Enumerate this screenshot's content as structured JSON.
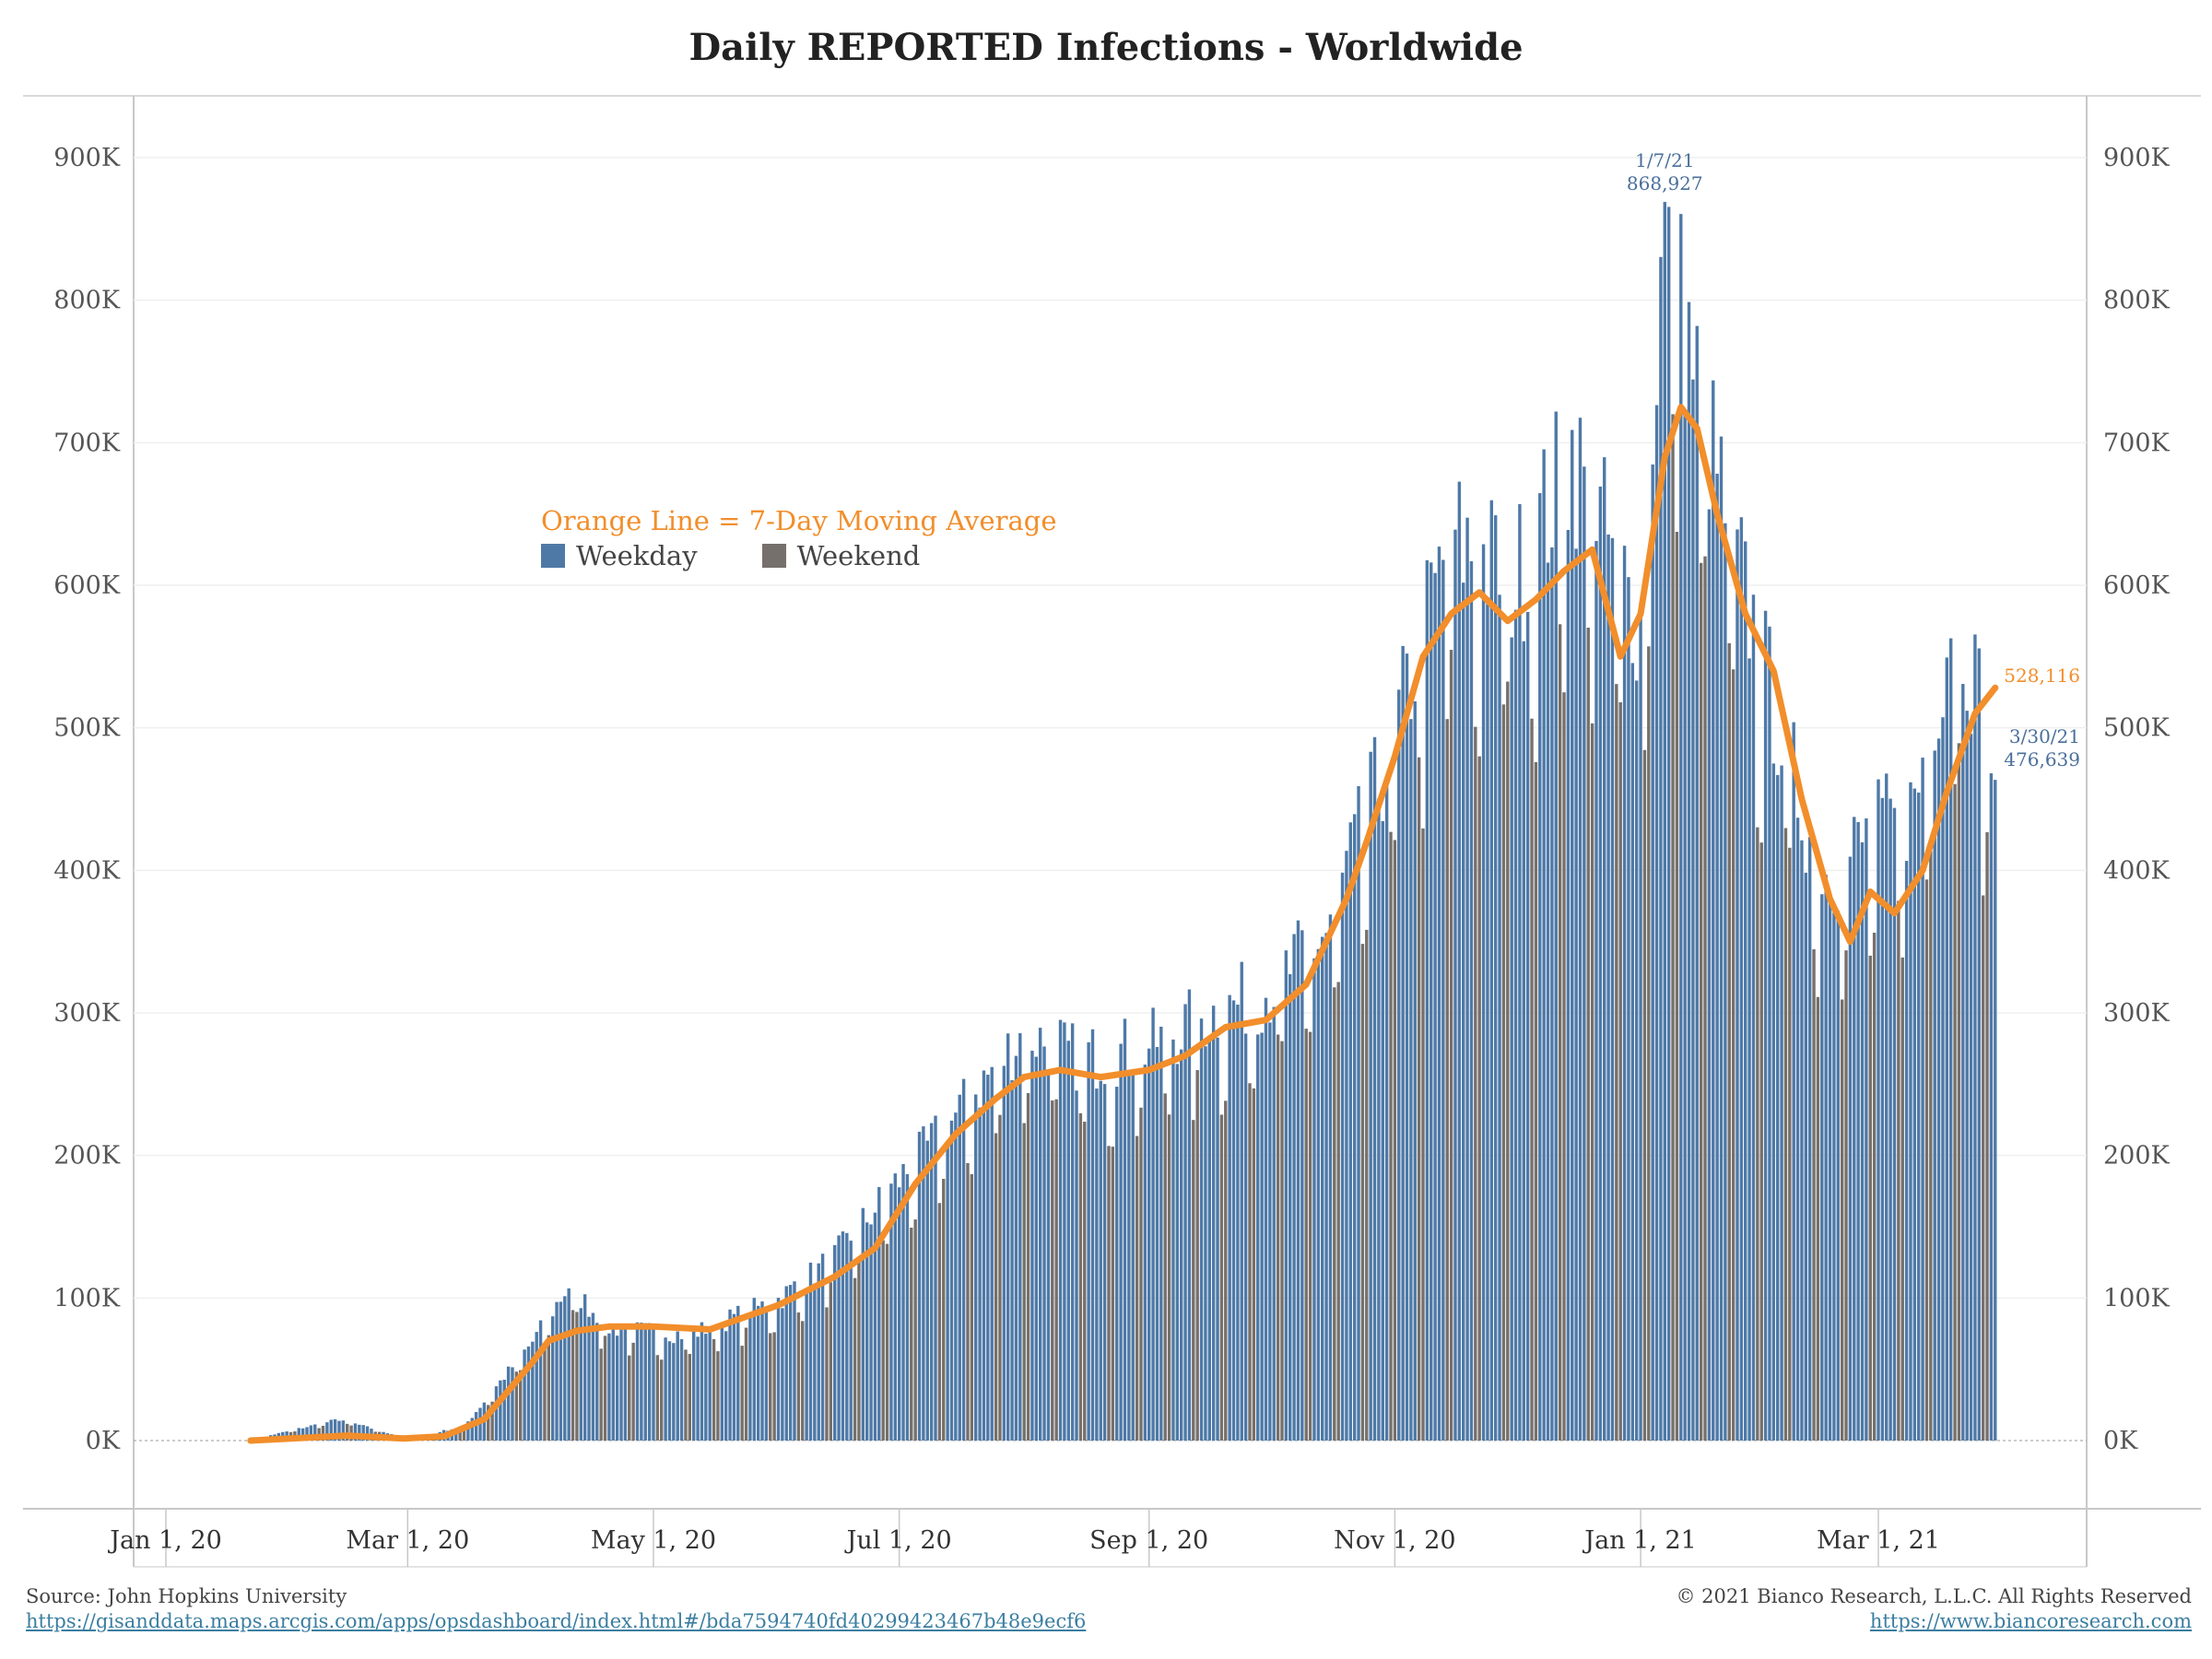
{
  "title": "Daily REPORTED Infections - Worldwide",
  "legend": {
    "note": "Orange Line = 7-Day Moving Average",
    "weekday_label": "Weekday",
    "weekend_label": "Weekend"
  },
  "footer": {
    "source": "Source: John Hopkins University",
    "source_url": "https://gisanddata.maps.arcgis.com/apps/opsdashboard/index.html#/bda7594740fd40299423467b48e9ecf6",
    "copyright": "© 2021 Bianco Research, L.L.C. All Rights Reserved",
    "site_url": "https://www.biancoresearch.com"
  },
  "colors": {
    "weekday": "#4e79a7",
    "weekend": "#76706c",
    "moving_average": "#f28e2b",
    "annotation_blue": "#4a6f9b"
  },
  "chart_data": {
    "type": "bar",
    "title": "Daily REPORTED Infections - Worldwide",
    "x_start": "2020-01-22",
    "x_end": "2021-03-30",
    "ylim": [
      0,
      940000
    ],
    "y_ticks": [
      0,
      100000,
      200000,
      300000,
      400000,
      500000,
      600000,
      700000,
      800000,
      900000
    ],
    "y_tick_labels": [
      "0K",
      "100K",
      "200K",
      "300K",
      "400K",
      "500K",
      "600K",
      "700K",
      "800K",
      "900K"
    ],
    "x_ticks": [
      "2020-01-01",
      "2020-03-01",
      "2020-05-01",
      "2020-07-01",
      "2020-09-01",
      "2020-11-01",
      "2021-01-01",
      "2021-03-01"
    ],
    "x_tick_labels": [
      "Jan 1, 20",
      "Mar 1, 20",
      "May 1, 20",
      "Jul 1, 20",
      "Sep 1, 20",
      "Nov 1, 20",
      "Jan 1, 21",
      "Mar 1, 21"
    ],
    "grid": true,
    "dual_y_axis": true,
    "legend_placement": "upper-left",
    "series": [
      {
        "name": "Weekday",
        "color_role": "weekday"
      },
      {
        "name": "Weekend",
        "color_role": "weekend"
      },
      {
        "name": "7-Day Moving Average",
        "color_role": "moving_average"
      }
    ],
    "moving_average": [
      [
        "2020-01-22",
        0
      ],
      [
        "2020-02-05",
        2000
      ],
      [
        "2020-02-15",
        3500
      ],
      [
        "2020-02-29",
        1500
      ],
      [
        "2020-03-10",
        3000
      ],
      [
        "2020-03-20",
        15000
      ],
      [
        "2020-04-01",
        55000
      ],
      [
        "2020-04-05",
        70000
      ],
      [
        "2020-04-12",
        77000
      ],
      [
        "2020-04-20",
        80000
      ],
      [
        "2020-05-01",
        80000
      ],
      [
        "2020-05-15",
        78000
      ],
      [
        "2020-06-01",
        95000
      ],
      [
        "2020-06-15",
        115000
      ],
      [
        "2020-06-25",
        135000
      ],
      [
        "2020-07-05",
        180000
      ],
      [
        "2020-07-15",
        215000
      ],
      [
        "2020-07-25",
        240000
      ],
      [
        "2020-08-01",
        255000
      ],
      [
        "2020-08-10",
        260000
      ],
      [
        "2020-08-20",
        255000
      ],
      [
        "2020-09-01",
        260000
      ],
      [
        "2020-09-10",
        270000
      ],
      [
        "2020-09-20",
        290000
      ],
      [
        "2020-09-30",
        295000
      ],
      [
        "2020-10-10",
        320000
      ],
      [
        "2020-10-20",
        380000
      ],
      [
        "2020-10-25",
        420000
      ],
      [
        "2020-11-01",
        480000
      ],
      [
        "2020-11-08",
        550000
      ],
      [
        "2020-11-15",
        580000
      ],
      [
        "2020-11-22",
        595000
      ],
      [
        "2020-11-29",
        575000
      ],
      [
        "2020-12-06",
        590000
      ],
      [
        "2020-12-13",
        610000
      ],
      [
        "2020-12-20",
        625000
      ],
      [
        "2020-12-27",
        550000
      ],
      [
        "2021-01-01",
        580000
      ],
      [
        "2021-01-07",
        690000
      ],
      [
        "2021-01-11",
        725000
      ],
      [
        "2021-01-15",
        710000
      ],
      [
        "2021-01-20",
        650000
      ],
      [
        "2021-01-27",
        580000
      ],
      [
        "2021-02-03",
        540000
      ],
      [
        "2021-02-10",
        450000
      ],
      [
        "2021-02-17",
        380000
      ],
      [
        "2021-02-22",
        350000
      ],
      [
        "2021-02-27",
        385000
      ],
      [
        "2021-03-05",
        370000
      ],
      [
        "2021-03-12",
        400000
      ],
      [
        "2021-03-18",
        455000
      ],
      [
        "2021-03-25",
        510000
      ],
      [
        "2021-03-30",
        528116
      ]
    ],
    "daily_anchor_values": [
      [
        "2020-01-22",
        500
      ],
      [
        "2020-02-13",
        15000
      ],
      [
        "2020-03-01",
        1500
      ],
      [
        "2020-03-15",
        10000
      ],
      [
        "2020-04-01",
        70000
      ],
      [
        "2020-04-10",
        110000
      ],
      [
        "2020-04-20",
        80000
      ],
      [
        "2020-05-10",
        75000
      ],
      [
        "2020-06-01",
        100000
      ],
      [
        "2020-06-15",
        130000
      ],
      [
        "2020-07-01",
        185000
      ],
      [
        "2020-07-15",
        230000
      ],
      [
        "2020-08-01",
        290000
      ],
      [
        "2020-08-15",
        270000
      ],
      [
        "2020-09-01",
        280000
      ],
      [
        "2020-09-15",
        300000
      ],
      [
        "2020-10-01",
        320000
      ],
      [
        "2020-10-15",
        360000
      ],
      [
        "2020-11-01",
        500000
      ],
      [
        "2020-11-15",
        640000
      ],
      [
        "2020-12-01",
        610000
      ],
      [
        "2020-12-15",
        700000
      ],
      [
        "2021-01-01",
        580000
      ],
      [
        "2021-01-07",
        868927
      ],
      [
        "2021-01-15",
        750000
      ],
      [
        "2021-01-25",
        620000
      ],
      [
        "2021-02-05",
        500000
      ],
      [
        "2021-02-15",
        400000
      ],
      [
        "2021-02-28",
        430000
      ],
      [
        "2021-03-10",
        450000
      ],
      [
        "2021-03-20",
        600000
      ],
      [
        "2021-03-30",
        476639
      ]
    ],
    "annotations": [
      {
        "date_label": "1/7/21",
        "value_label": "868,927",
        "x": "2021-01-07",
        "y": 868927
      },
      {
        "date_label": "3/30/21",
        "value_label": "476,639",
        "x": "2021-03-30",
        "y": 476639
      },
      {
        "value_label": "528,116",
        "x": "2021-03-30",
        "y": 528116
      }
    ]
  }
}
